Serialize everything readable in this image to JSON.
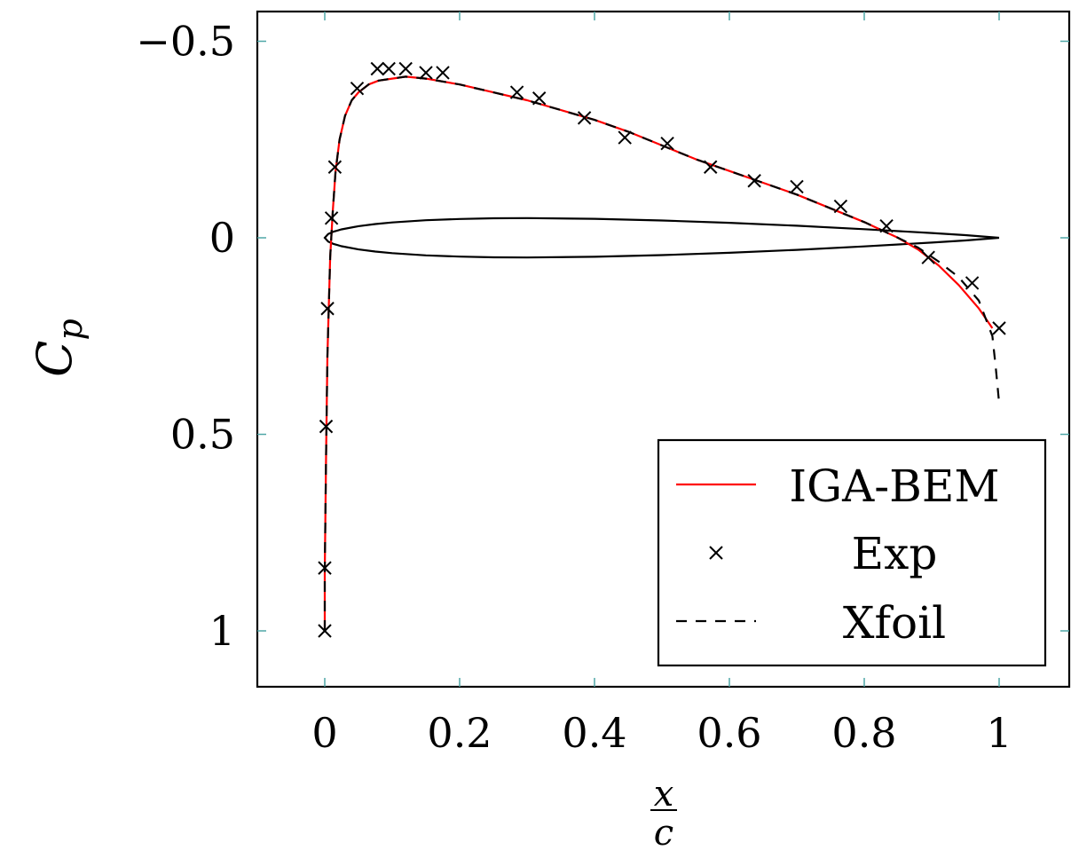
{
  "chart_data": {
    "type": "line",
    "xlabel": {
      "numerator": "x",
      "denominator": "c"
    },
    "ylabel": {
      "base": "C",
      "subscript": "p"
    },
    "xlim": [
      -0.1,
      1.1
    ],
    "ylim": [
      1.14,
      -0.58
    ],
    "y_axis_inverted": true,
    "grid": false,
    "xticks": [
      0,
      0.2,
      0.4,
      0.6,
      0.8,
      1
    ],
    "xtick_labels": [
      "0",
      "0.2",
      "0.4",
      "0.6",
      "0.8",
      "1"
    ],
    "yticks": [
      -0.5,
      0,
      0.5,
      1
    ],
    "ytick_labels": [
      "−0.5",
      "0",
      "0.5",
      "1"
    ],
    "legend_position": "bottom-right",
    "colors": {
      "iga_bem": "#ff0000",
      "exp": "#000000",
      "xfoil": "#000000",
      "airfoil": "#000000",
      "tick_marks": "#4fa7a7"
    },
    "series": [
      {
        "name": "IGA-BEM",
        "style": "solid",
        "x": [
          0.0,
          0.0,
          0.002,
          0.004,
          0.008,
          0.012,
          0.016,
          0.022,
          0.03,
          0.04,
          0.05,
          0.065,
          0.08,
          0.1,
          0.12,
          0.15,
          0.2,
          0.25,
          0.3,
          0.35,
          0.4,
          0.45,
          0.5,
          0.55,
          0.6,
          0.65,
          0.7,
          0.75,
          0.8,
          0.85,
          0.88,
          0.91,
          0.94,
          0.97,
          0.99
        ],
        "y": [
          1.0,
          0.85,
          0.55,
          0.3,
          0.05,
          -0.07,
          -0.17,
          -0.25,
          -0.31,
          -0.35,
          -0.37,
          -0.39,
          -0.4,
          -0.405,
          -0.41,
          -0.405,
          -0.39,
          -0.37,
          -0.35,
          -0.325,
          -0.3,
          -0.27,
          -0.235,
          -0.2,
          -0.17,
          -0.14,
          -0.11,
          -0.075,
          -0.04,
          0.0,
          0.03,
          0.07,
          0.12,
          0.18,
          0.23
        ]
      },
      {
        "name": "Exp",
        "style": "marker-x",
        "x": [
          0.0,
          0.0,
          0.002,
          0.004,
          0.01,
          0.015,
          0.048,
          0.078,
          0.095,
          0.12,
          0.15,
          0.175,
          0.285,
          0.318,
          0.385,
          0.445,
          0.508,
          0.572,
          0.637,
          0.7,
          0.765,
          0.833,
          0.895,
          0.96,
          1.0
        ],
        "y": [
          1.0,
          0.84,
          0.48,
          0.18,
          -0.05,
          -0.18,
          -0.38,
          -0.43,
          -0.43,
          -0.43,
          -0.42,
          -0.42,
          -0.37,
          -0.355,
          -0.305,
          -0.255,
          -0.24,
          -0.18,
          -0.145,
          -0.13,
          -0.08,
          -0.03,
          0.05,
          0.115,
          0.23
        ]
      },
      {
        "name": "Xfoil",
        "style": "dashed",
        "x": [
          0.0,
          0.0,
          0.002,
          0.004,
          0.008,
          0.012,
          0.016,
          0.022,
          0.03,
          0.04,
          0.05,
          0.065,
          0.08,
          0.1,
          0.12,
          0.15,
          0.2,
          0.25,
          0.3,
          0.35,
          0.4,
          0.45,
          0.5,
          0.55,
          0.6,
          0.65,
          0.7,
          0.75,
          0.8,
          0.85,
          0.88,
          0.91,
          0.94,
          0.97,
          0.99,
          0.995,
          1.0
        ],
        "y": [
          1.0,
          0.85,
          0.55,
          0.3,
          0.05,
          -0.07,
          -0.17,
          -0.25,
          -0.31,
          -0.35,
          -0.37,
          -0.39,
          -0.4,
          -0.405,
          -0.41,
          -0.405,
          -0.39,
          -0.37,
          -0.35,
          -0.325,
          -0.3,
          -0.27,
          -0.235,
          -0.2,
          -0.17,
          -0.14,
          -0.11,
          -0.075,
          -0.04,
          0.0,
          0.025,
          0.06,
          0.1,
          0.16,
          0.25,
          0.33,
          0.42
        ]
      }
    ],
    "airfoil_outline": {
      "x": [
        1.0,
        0.95,
        0.9,
        0.8,
        0.7,
        0.6,
        0.5,
        0.4,
        0.3,
        0.25,
        0.2,
        0.15,
        0.1,
        0.075,
        0.05,
        0.025,
        0.0125,
        0.005,
        0.0,
        0.005,
        0.0125,
        0.025,
        0.05,
        0.075,
        0.1,
        0.15,
        0.2,
        0.25,
        0.3,
        0.4,
        0.5,
        0.6,
        0.7,
        0.8,
        0.9,
        0.95,
        1.0
      ],
      "y": [
        0.0,
        -0.0067,
        -0.0121,
        -0.0219,
        -0.0306,
        -0.0382,
        -0.0441,
        -0.0483,
        -0.0502,
        -0.0496,
        -0.0479,
        -0.0446,
        -0.039,
        -0.0349,
        -0.0296,
        -0.0215,
        -0.0153,
        -0.0095,
        0.0,
        0.0095,
        0.0153,
        0.0215,
        0.0296,
        0.0349,
        0.039,
        0.0446,
        0.0479,
        0.0496,
        0.0502,
        0.0483,
        0.0441,
        0.0382,
        0.0306,
        0.0219,
        0.0121,
        0.0067,
        0.0
      ]
    }
  }
}
